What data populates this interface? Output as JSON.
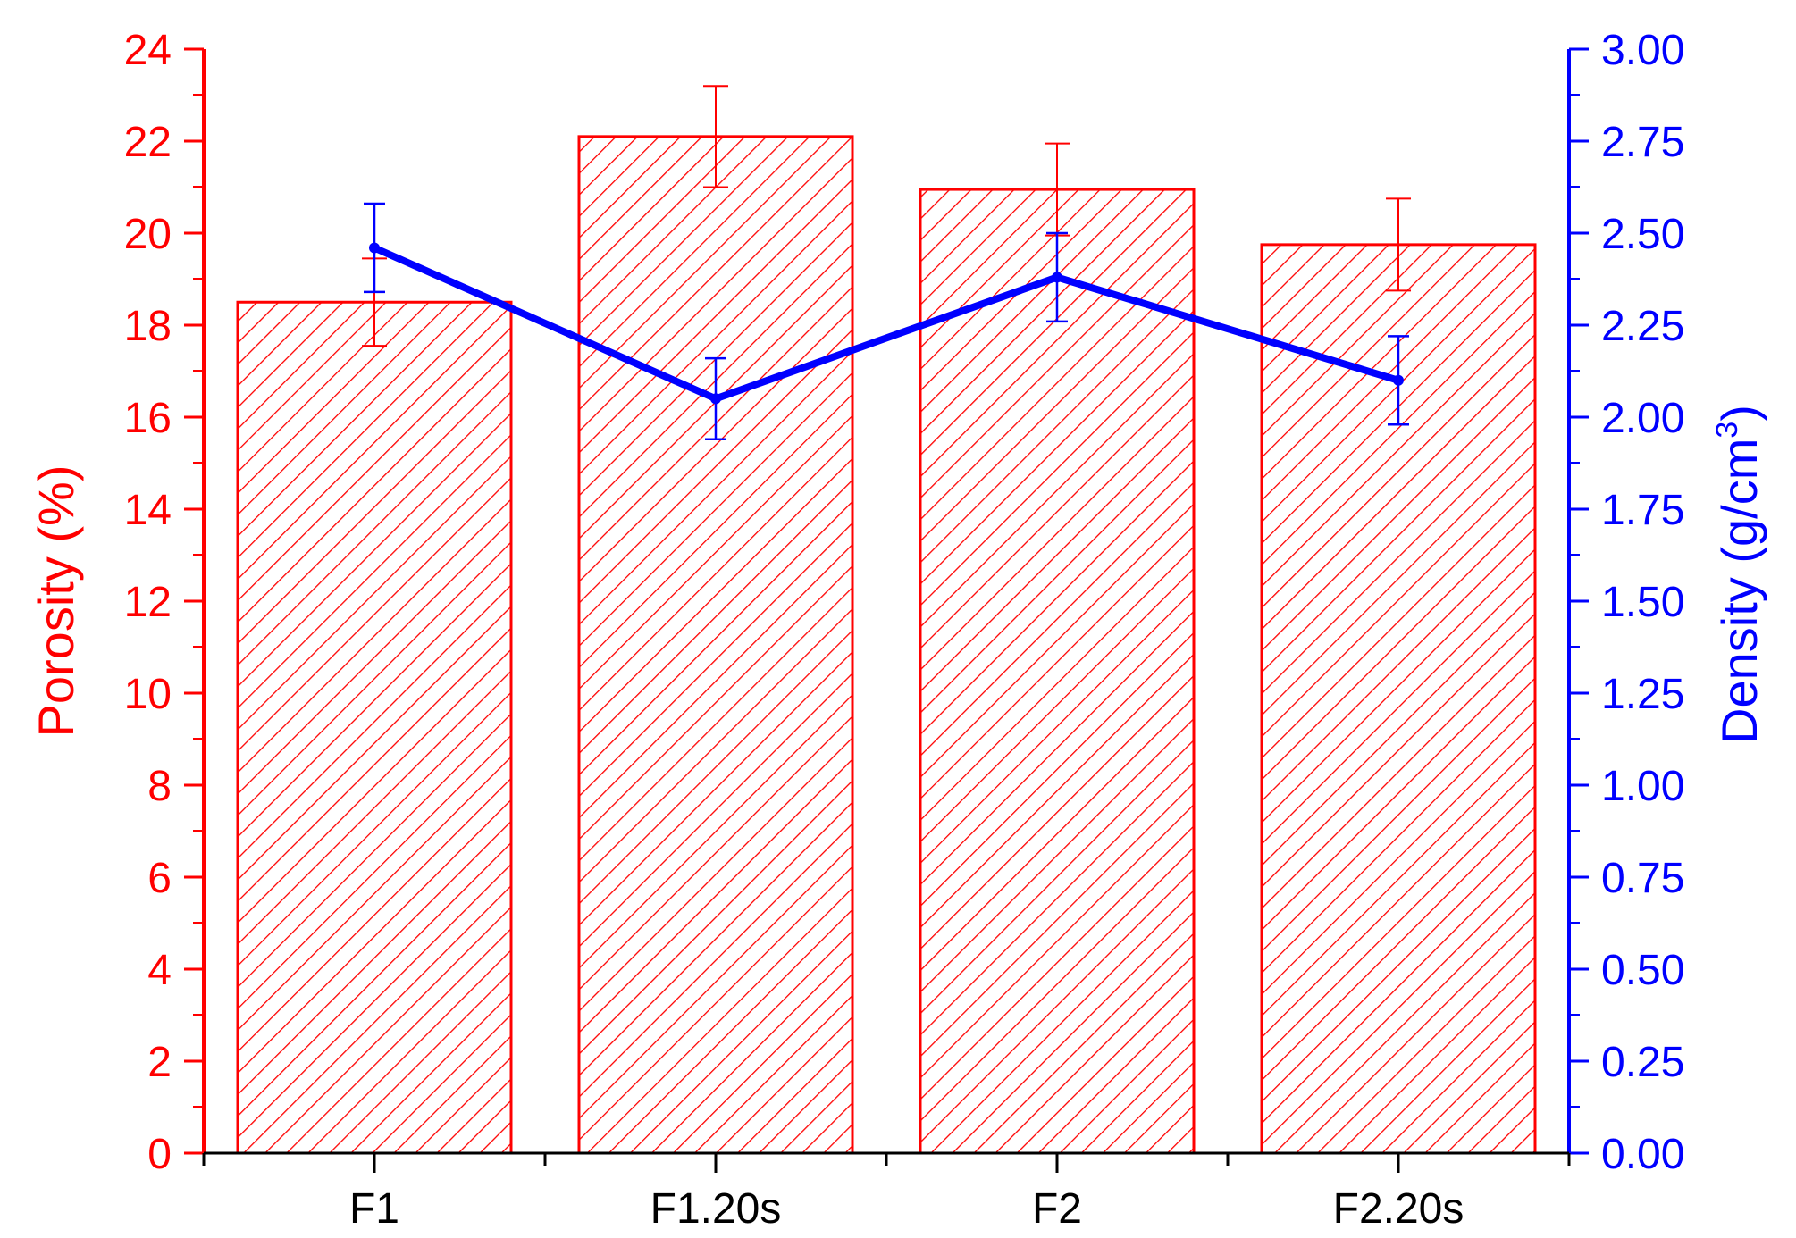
{
  "colors": {
    "left_axis": "#ff0000",
    "right_axis": "#0000ff",
    "bar_stroke": "#ff0000",
    "bar_hatch": "#ff0000",
    "line": "#0000ff",
    "x_axis": "#000000",
    "background": "#ffffff"
  },
  "chart_data": {
    "type": "bar",
    "categories": [
      "F1",
      "F1.20s",
      "F2",
      "F2.20s"
    ],
    "grid": false,
    "legend": "none",
    "left_axis": {
      "label_main": "Porosity (%)",
      "ylim": [
        0,
        24
      ],
      "ticks": [
        "0",
        "2",
        "4",
        "6",
        "8",
        "10",
        "12",
        "14",
        "16",
        "18",
        "20",
        "22",
        "24"
      ],
      "color": "#ff0000"
    },
    "right_axis": {
      "label_main": "Density (g/cm",
      "label_sup": "3",
      "label_close": ")",
      "ylim": [
        0,
        3
      ],
      "ticks": [
        "0.00",
        "0.25",
        "0.50",
        "0.75",
        "1.00",
        "1.25",
        "1.50",
        "1.75",
        "2.00",
        "2.25",
        "2.50",
        "2.75",
        "3.00"
      ],
      "color": "#0000ff"
    },
    "series": [
      {
        "type": "bar",
        "axis": "left",
        "values": [
          18.5,
          22.1,
          20.95,
          19.75
        ],
        "error": [
          0.95,
          1.1,
          1.0,
          1.0
        ],
        "fill": "hatched"
      },
      {
        "type": "line",
        "axis": "right",
        "values": [
          2.46,
          2.05,
          2.38,
          2.1
        ],
        "error": [
          0.12,
          0.11,
          0.12,
          0.12
        ]
      }
    ]
  }
}
